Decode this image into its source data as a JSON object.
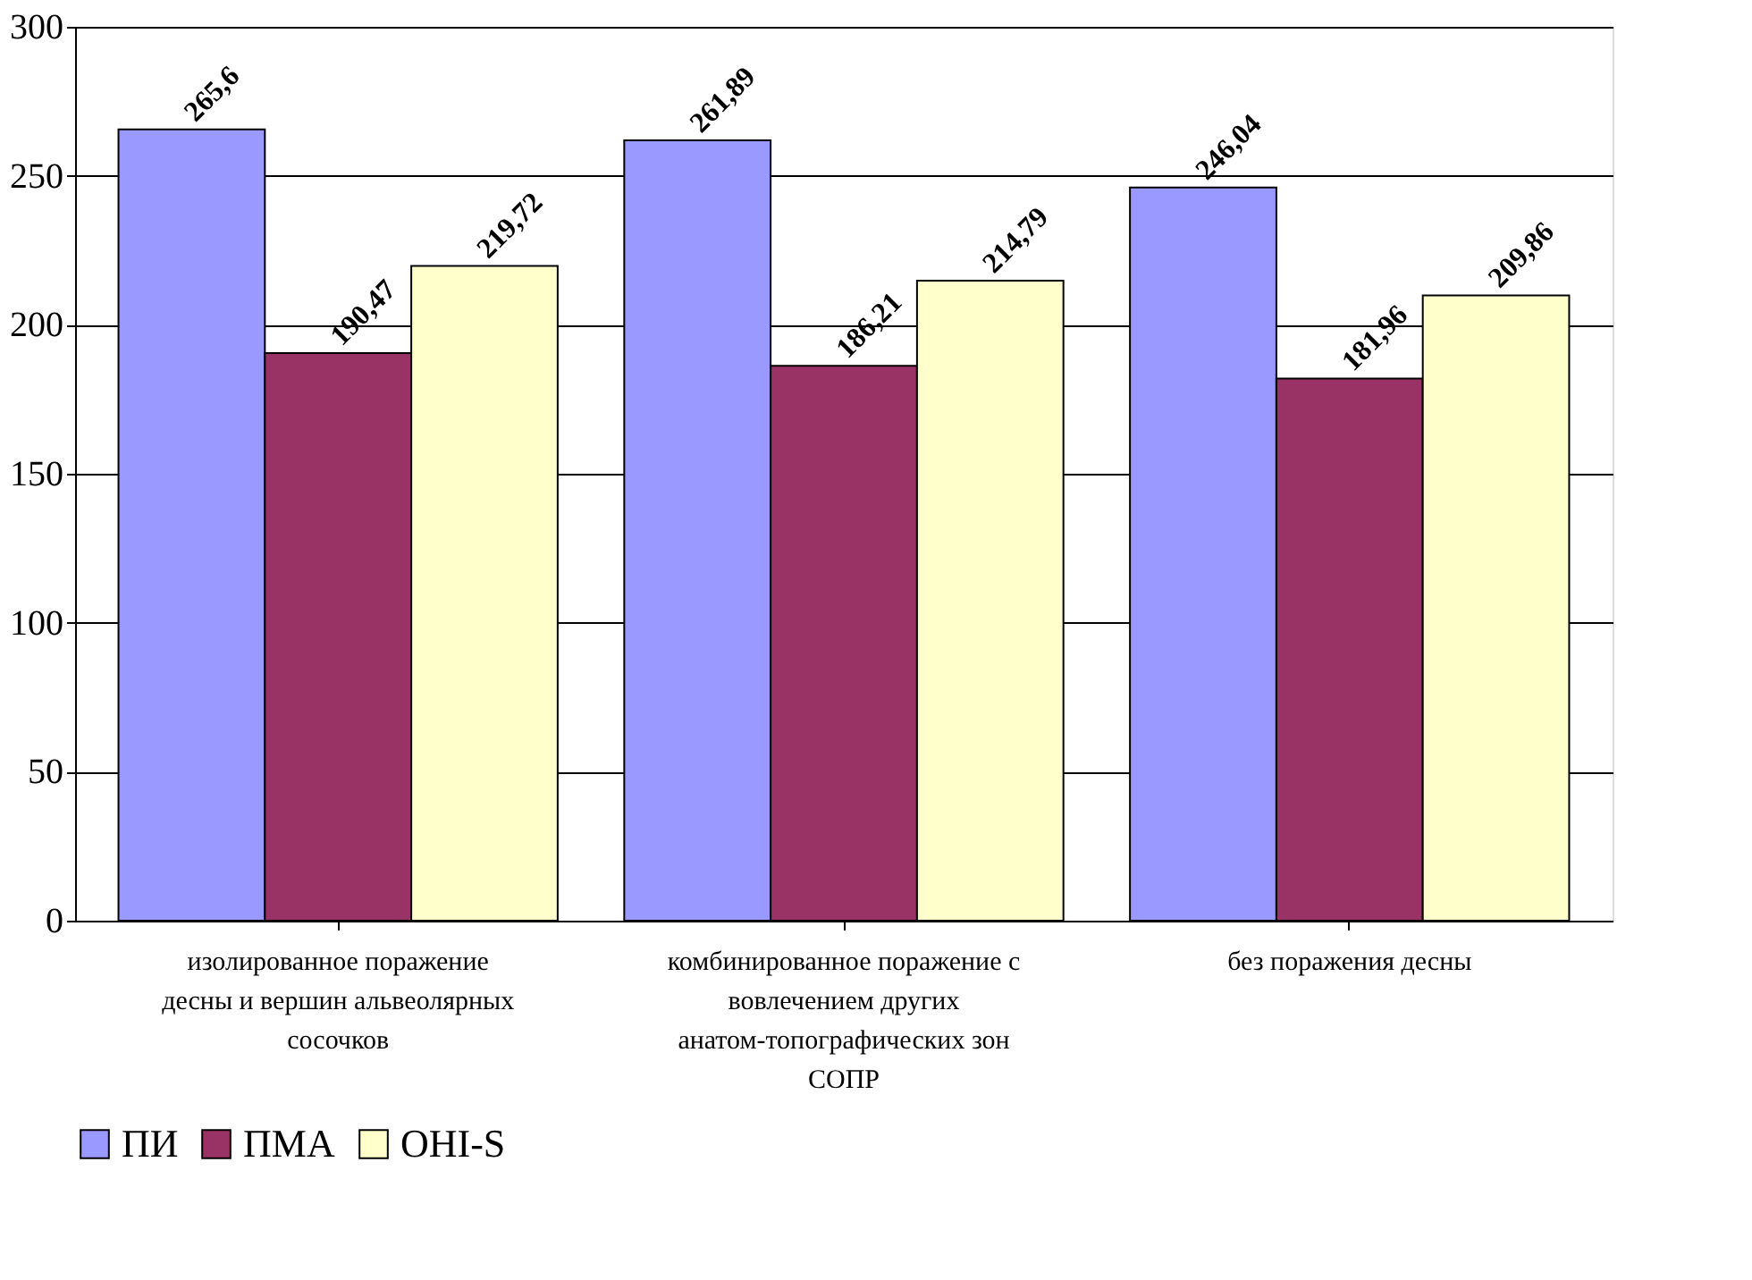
{
  "chart_data": {
    "type": "bar",
    "categories": [
      "изолированное поражение десны и вершин альвеолярных сосочков",
      "комбинированное поражение с вовлечением других анатом-топографических зон СОПР",
      "без поражения десны"
    ],
    "series": [
      {
        "name": "ПИ",
        "color": "#9999ff",
        "values": [
          265.6,
          261.89,
          246.04
        ],
        "value_labels": [
          "265,6",
          "261,89",
          "246,04"
        ]
      },
      {
        "name": "ПМА",
        "color": "#993366",
        "values": [
          190.47,
          186.21,
          181.96
        ],
        "value_labels": [
          "190,47",
          "186,21",
          "181,96"
        ]
      },
      {
        "name": "OHI-S",
        "color": "#ffffcc",
        "values": [
          219.72,
          214.79,
          209.86
        ],
        "value_labels": [
          "219,72",
          "214,79",
          "209,86"
        ]
      }
    ],
    "ylim": [
      0,
      300
    ],
    "yticks": [
      0,
      50,
      100,
      150,
      200,
      250,
      300
    ],
    "grid": "y",
    "legend": "bottom"
  }
}
